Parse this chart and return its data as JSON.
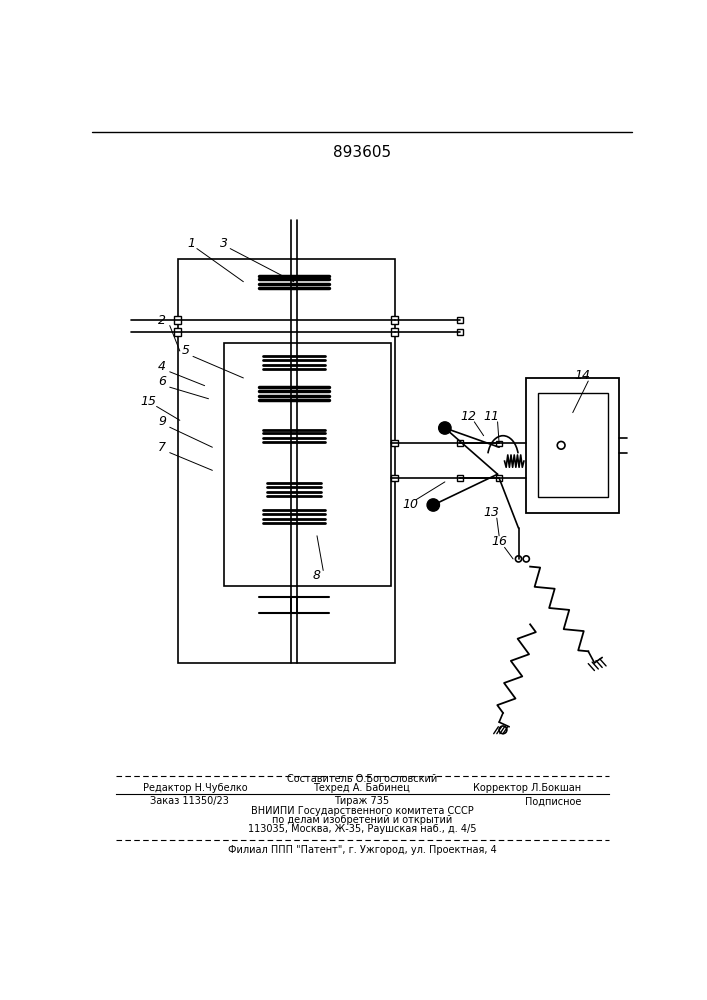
{
  "patent_number": "893605",
  "bg": "#ffffff",
  "lc": "#000000",
  "footer": {
    "l0": "Составитель О.Богословский",
    "l1a": "Редактор Н.Чубелко",
    "l1b": "Техред А. Бабинец",
    "l1c": "Корректор Л.Бокшан",
    "l2a": "Заказ 11350/23",
    "l2b": "Тираж 735",
    "l2c": "Подписное",
    "l3": "ВНИИПИ Государственного комитета СССР",
    "l4": "по делам изобретений и открытий",
    "l5": "113035, Москва, Ж-35, Раушская наб., д. 4/5",
    "l6": "Филиал ППП \"Патент\", г. Ужгород, ул. Проектная, 4"
  }
}
